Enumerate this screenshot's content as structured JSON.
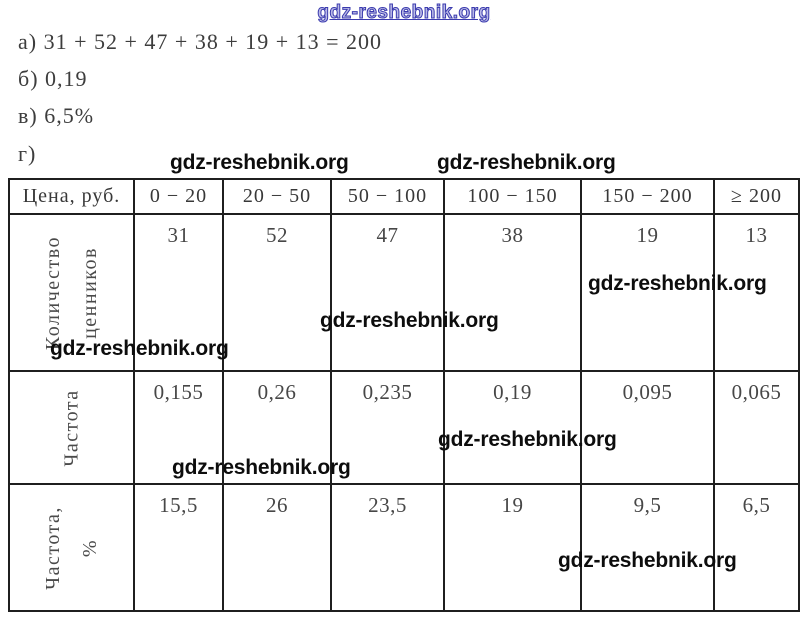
{
  "watermarks": {
    "text": "gdz-reshebnik.org",
    "blue_color": "#3a3aae",
    "black_color": "#0d0d0d"
  },
  "solution": {
    "line_a": "а) 31 + 52 + 47 + 38 + 19 + 13 = 200",
    "line_b": "б) 0,19",
    "line_v": "в) 6,5%",
    "line_g": "г)"
  },
  "table": {
    "header": [
      "Цена, руб.",
      "0 − 20",
      "20 − 50",
      "50 − 100",
      "100 − 150",
      "150 − 200",
      "≥ 200"
    ],
    "rows": [
      {
        "label_lines": [
          "Количество",
          "ценников"
        ],
        "values": [
          "31",
          "52",
          "47",
          "38",
          "19",
          "13"
        ]
      },
      {
        "label_lines": [
          "Частота"
        ],
        "values": [
          "0,155",
          "0,26",
          "0,235",
          "0,19",
          "0,095",
          "0,065"
        ]
      },
      {
        "label_lines": [
          "Частота,",
          "%"
        ],
        "values": [
          "15,5",
          "26",
          "23,5",
          "19",
          "9,5",
          "6,5"
        ]
      }
    ]
  }
}
